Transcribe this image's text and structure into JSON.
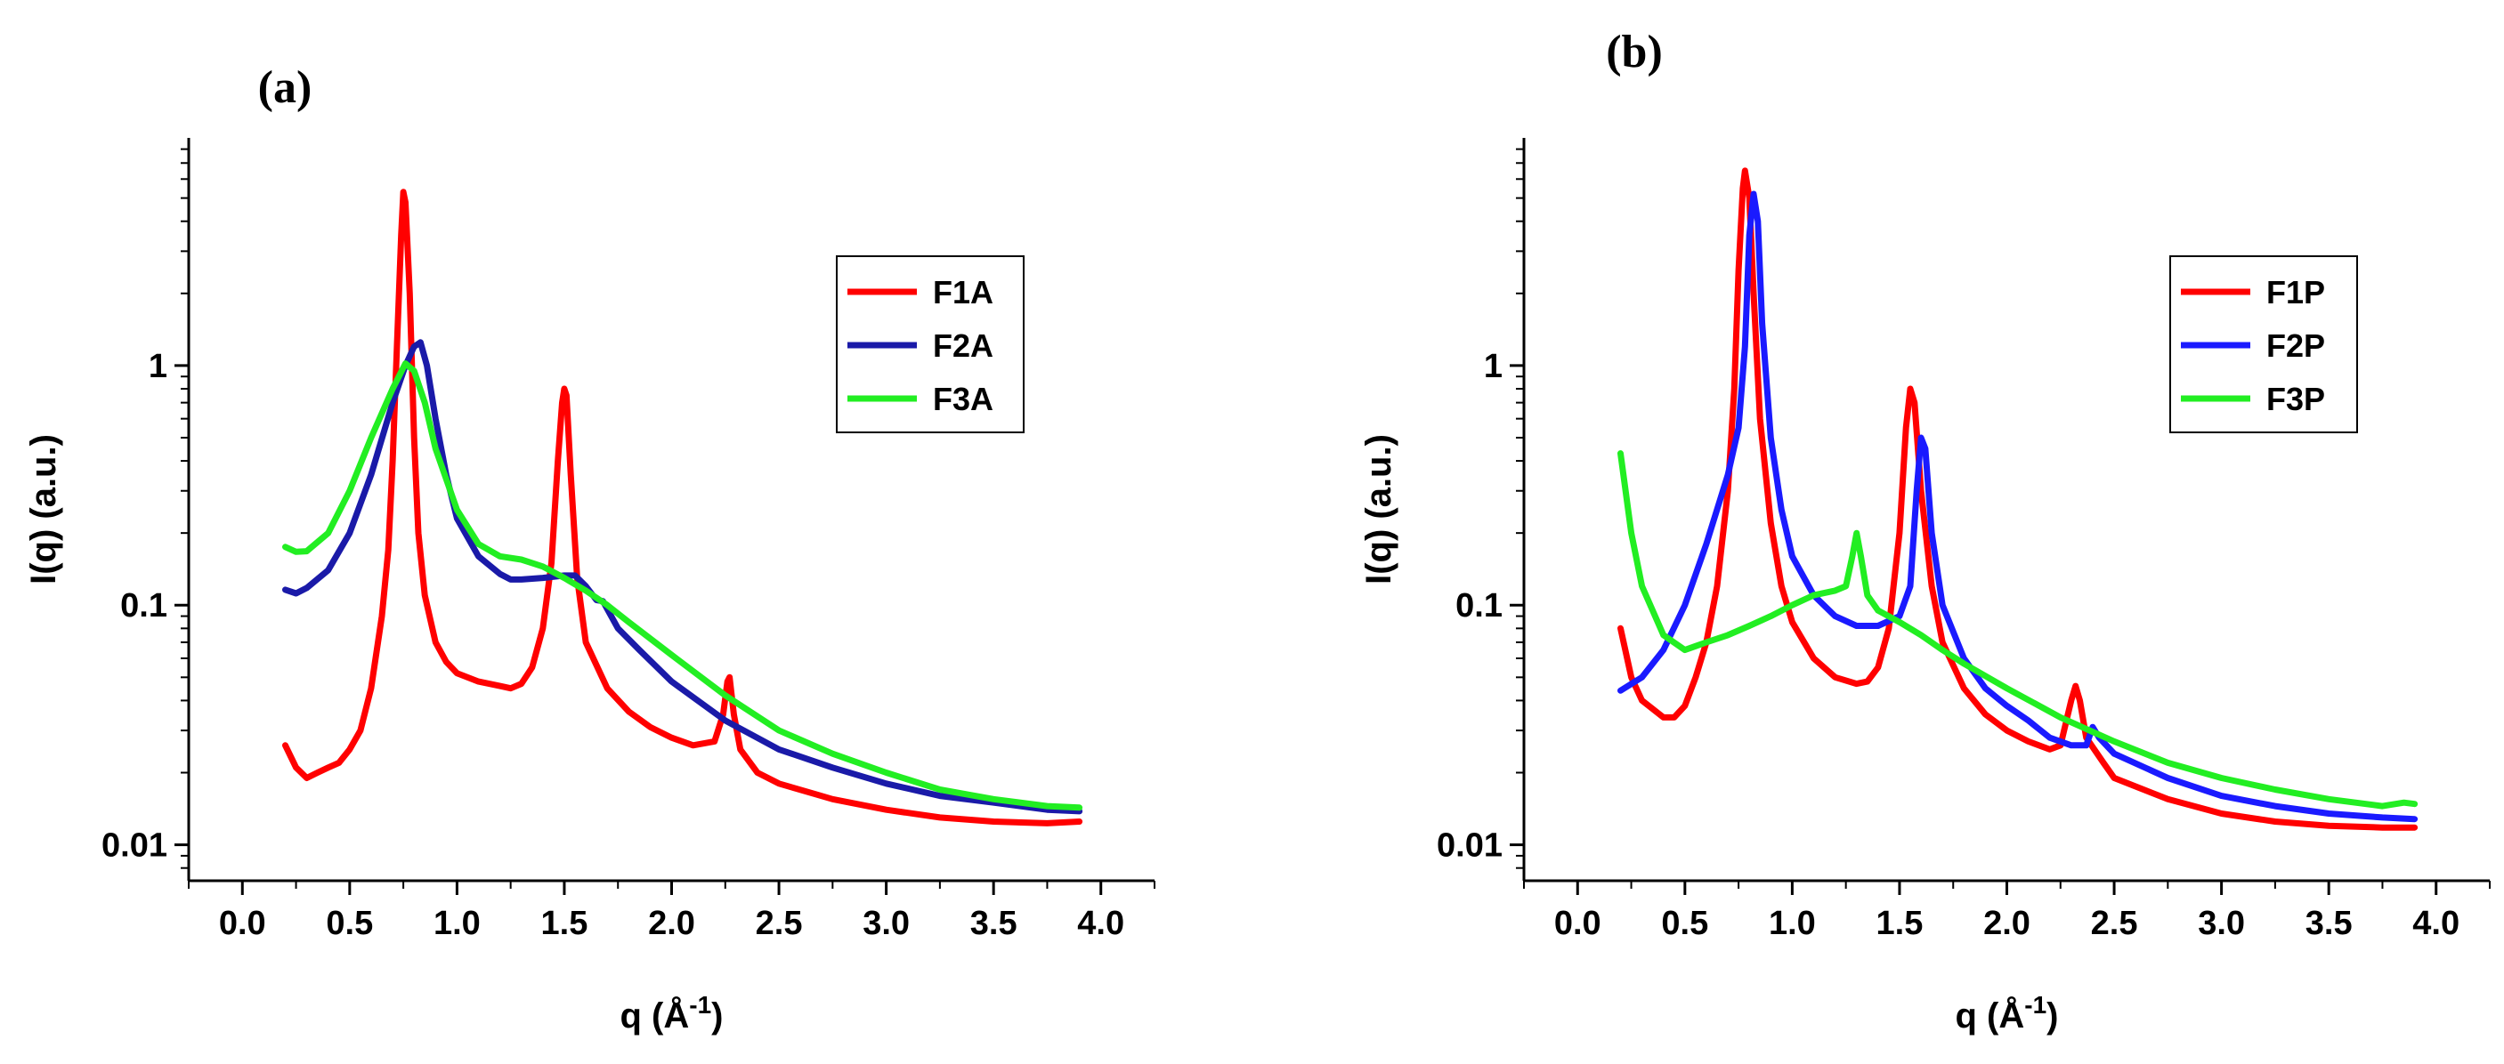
{
  "chart_data": [
    {
      "panel_label": "(a)",
      "type": "line",
      "xlabel_main": "q (Å",
      "xlabel_sup": "-1",
      "xlabel_end": ")",
      "ylabel": "I(q) (a.u.)",
      "xlim": [
        -0.25,
        4.25
      ],
      "ylim_log10": [
        -2.15,
        0.95
      ],
      "y_scale": "log",
      "x_ticks": [
        "0.0",
        "0.5",
        "1.0",
        "1.5",
        "2.0",
        "2.5",
        "3.0",
        "3.5",
        "4.0"
      ],
      "y_ticks": [
        "0.01",
        "0.1",
        "1"
      ],
      "legend_position": "top-right",
      "series": [
        {
          "name": "F1A",
          "color": "#ff0000",
          "points": [
            [
              0.2,
              0.026
            ],
            [
              0.25,
              0.021
            ],
            [
              0.3,
              0.019
            ],
            [
              0.35,
              0.02
            ],
            [
              0.4,
              0.021
            ],
            [
              0.45,
              0.022
            ],
            [
              0.5,
              0.025
            ],
            [
              0.55,
              0.03
            ],
            [
              0.6,
              0.045
            ],
            [
              0.65,
              0.09
            ],
            [
              0.68,
              0.17
            ],
            [
              0.7,
              0.4
            ],
            [
              0.72,
              1.2
            ],
            [
              0.74,
              3.5
            ],
            [
              0.75,
              5.3
            ],
            [
              0.76,
              4.8
            ],
            [
              0.78,
              2.0
            ],
            [
              0.8,
              0.5
            ],
            [
              0.82,
              0.2
            ],
            [
              0.85,
              0.11
            ],
            [
              0.9,
              0.07
            ],
            [
              0.95,
              0.058
            ],
            [
              1.0,
              0.052
            ],
            [
              1.1,
              0.048
            ],
            [
              1.2,
              0.046
            ],
            [
              1.25,
              0.045
            ],
            [
              1.3,
              0.047
            ],
            [
              1.35,
              0.055
            ],
            [
              1.4,
              0.08
            ],
            [
              1.44,
              0.15
            ],
            [
              1.47,
              0.4
            ],
            [
              1.49,
              0.7
            ],
            [
              1.5,
              0.8
            ],
            [
              1.51,
              0.75
            ],
            [
              1.53,
              0.35
            ],
            [
              1.56,
              0.13
            ],
            [
              1.6,
              0.07
            ],
            [
              1.7,
              0.045
            ],
            [
              1.8,
              0.036
            ],
            [
              1.9,
              0.031
            ],
            [
              2.0,
              0.028
            ],
            [
              2.1,
              0.026
            ],
            [
              2.2,
              0.027
            ],
            [
              2.24,
              0.035
            ],
            [
              2.26,
              0.048
            ],
            [
              2.27,
              0.05
            ],
            [
              2.29,
              0.035
            ],
            [
              2.32,
              0.025
            ],
            [
              2.4,
              0.02
            ],
            [
              2.5,
              0.018
            ],
            [
              2.75,
              0.0155
            ],
            [
              3.0,
              0.014
            ],
            [
              3.25,
              0.013
            ],
            [
              3.5,
              0.0125
            ],
            [
              3.75,
              0.0123
            ],
            [
              3.9,
              0.0125
            ]
          ]
        },
        {
          "name": "F2A",
          "color": "#1a1aa8",
          "points": [
            [
              0.2,
              0.116
            ],
            [
              0.25,
              0.112
            ],
            [
              0.3,
              0.118
            ],
            [
              0.4,
              0.14
            ],
            [
              0.5,
              0.2
            ],
            [
              0.6,
              0.35
            ],
            [
              0.7,
              0.7
            ],
            [
              0.76,
              1.0
            ],
            [
              0.8,
              1.2
            ],
            [
              0.83,
              1.25
            ],
            [
              0.86,
              1.0
            ],
            [
              0.9,
              0.6
            ],
            [
              0.95,
              0.35
            ],
            [
              1.0,
              0.23
            ],
            [
              1.1,
              0.16
            ],
            [
              1.2,
              0.135
            ],
            [
              1.25,
              0.128
            ],
            [
              1.3,
              0.128
            ],
            [
              1.4,
              0.13
            ],
            [
              1.5,
              0.133
            ],
            [
              1.55,
              0.133
            ],
            [
              1.6,
              0.12
            ],
            [
              1.65,
              0.105
            ],
            [
              1.68,
              0.104
            ],
            [
              1.75,
              0.08
            ],
            [
              1.85,
              0.065
            ],
            [
              2.0,
              0.048
            ],
            [
              2.25,
              0.033
            ],
            [
              2.5,
              0.025
            ],
            [
              2.75,
              0.021
            ],
            [
              3.0,
              0.018
            ],
            [
              3.25,
              0.016
            ],
            [
              3.5,
              0.015
            ],
            [
              3.75,
              0.014
            ],
            [
              3.9,
              0.0138
            ]
          ]
        },
        {
          "name": "F3A",
          "color": "#22ee22",
          "points": [
            [
              0.2,
              0.175
            ],
            [
              0.25,
              0.167
            ],
            [
              0.3,
              0.168
            ],
            [
              0.4,
              0.2
            ],
            [
              0.5,
              0.3
            ],
            [
              0.6,
              0.5
            ],
            [
              0.7,
              0.8
            ],
            [
              0.76,
              1.02
            ],
            [
              0.8,
              0.95
            ],
            [
              0.85,
              0.7
            ],
            [
              0.9,
              0.45
            ],
            [
              1.0,
              0.25
            ],
            [
              1.1,
              0.18
            ],
            [
              1.2,
              0.16
            ],
            [
              1.3,
              0.155
            ],
            [
              1.4,
              0.145
            ],
            [
              1.5,
              0.13
            ],
            [
              1.6,
              0.115
            ],
            [
              1.7,
              0.1
            ],
            [
              1.8,
              0.085
            ],
            [
              2.0,
              0.062
            ],
            [
              2.25,
              0.042
            ],
            [
              2.5,
              0.03
            ],
            [
              2.75,
              0.024
            ],
            [
              3.0,
              0.02
            ],
            [
              3.25,
              0.017
            ],
            [
              3.5,
              0.0155
            ],
            [
              3.75,
              0.0145
            ],
            [
              3.9,
              0.0143
            ]
          ]
        }
      ]
    },
    {
      "panel_label": "(b)",
      "type": "line",
      "xlabel_main": "q (Å",
      "xlabel_sup": "-1",
      "xlabel_end": ")",
      "ylabel": "I(q) (a.u.)",
      "xlim": [
        -0.25,
        4.25
      ],
      "ylim_log10": [
        -2.15,
        0.95
      ],
      "y_scale": "log",
      "x_ticks": [
        "0.0",
        "0.5",
        "1.0",
        "1.5",
        "2.0",
        "2.5",
        "3.0",
        "3.5",
        "4.0"
      ],
      "y_ticks": [
        "0.01",
        "0.1",
        "1"
      ],
      "legend_position": "top-right",
      "series": [
        {
          "name": "F1P",
          "color": "#ff0000",
          "points": [
            [
              0.2,
              0.08
            ],
            [
              0.25,
              0.05
            ],
            [
              0.3,
              0.04
            ],
            [
              0.4,
              0.034
            ],
            [
              0.45,
              0.034
            ],
            [
              0.5,
              0.038
            ],
            [
              0.55,
              0.05
            ],
            [
              0.6,
              0.07
            ],
            [
              0.65,
              0.12
            ],
            [
              0.7,
              0.3
            ],
            [
              0.73,
              0.8
            ],
            [
              0.75,
              2.5
            ],
            [
              0.77,
              5.5
            ],
            [
              0.78,
              6.5
            ],
            [
              0.8,
              5.0
            ],
            [
              0.82,
              2.0
            ],
            [
              0.85,
              0.6
            ],
            [
              0.9,
              0.22
            ],
            [
              0.95,
              0.12
            ],
            [
              1.0,
              0.085
            ],
            [
              1.1,
              0.06
            ],
            [
              1.2,
              0.05
            ],
            [
              1.3,
              0.047
            ],
            [
              1.35,
              0.048
            ],
            [
              1.4,
              0.055
            ],
            [
              1.45,
              0.08
            ],
            [
              1.5,
              0.2
            ],
            [
              1.53,
              0.55
            ],
            [
              1.55,
              0.8
            ],
            [
              1.57,
              0.7
            ],
            [
              1.6,
              0.3
            ],
            [
              1.65,
              0.12
            ],
            [
              1.7,
              0.07
            ],
            [
              1.8,
              0.045
            ],
            [
              1.9,
              0.035
            ],
            [
              2.0,
              0.03
            ],
            [
              2.1,
              0.027
            ],
            [
              2.2,
              0.025
            ],
            [
              2.25,
              0.026
            ],
            [
              2.3,
              0.04
            ],
            [
              2.32,
              0.046
            ],
            [
              2.34,
              0.04
            ],
            [
              2.37,
              0.028
            ],
            [
              2.45,
              0.022
            ],
            [
              2.5,
              0.019
            ],
            [
              2.75,
              0.0155
            ],
            [
              3.0,
              0.0135
            ],
            [
              3.25,
              0.0125
            ],
            [
              3.5,
              0.012
            ],
            [
              3.75,
              0.0118
            ],
            [
              3.9,
              0.0118
            ]
          ]
        },
        {
          "name": "F2P",
          "color": "#1a1aff",
          "points": [
            [
              0.2,
              0.044
            ],
            [
              0.3,
              0.05
            ],
            [
              0.4,
              0.065
            ],
            [
              0.5,
              0.1
            ],
            [
              0.6,
              0.18
            ],
            [
              0.7,
              0.35
            ],
            [
              0.75,
              0.55
            ],
            [
              0.78,
              1.2
            ],
            [
              0.8,
              3.5
            ],
            [
              0.82,
              5.2
            ],
            [
              0.84,
              4.0
            ],
            [
              0.86,
              1.5
            ],
            [
              0.9,
              0.5
            ],
            [
              0.95,
              0.25
            ],
            [
              1.0,
              0.16
            ],
            [
              1.1,
              0.11
            ],
            [
              1.2,
              0.09
            ],
            [
              1.3,
              0.082
            ],
            [
              1.4,
              0.082
            ],
            [
              1.5,
              0.09
            ],
            [
              1.55,
              0.12
            ],
            [
              1.58,
              0.3
            ],
            [
              1.6,
              0.5
            ],
            [
              1.62,
              0.45
            ],
            [
              1.65,
              0.2
            ],
            [
              1.7,
              0.1
            ],
            [
              1.8,
              0.06
            ],
            [
              1.9,
              0.045
            ],
            [
              2.0,
              0.038
            ],
            [
              2.1,
              0.033
            ],
            [
              2.2,
              0.028
            ],
            [
              2.3,
              0.026
            ],
            [
              2.37,
              0.026
            ],
            [
              2.4,
              0.031
            ],
            [
              2.43,
              0.028
            ],
            [
              2.5,
              0.024
            ],
            [
              2.75,
              0.019
            ],
            [
              3.0,
              0.016
            ],
            [
              3.25,
              0.0145
            ],
            [
              3.5,
              0.0135
            ],
            [
              3.75,
              0.013
            ],
            [
              3.9,
              0.0128
            ]
          ]
        },
        {
          "name": "F3P",
          "color": "#22ee22",
          "points": [
            [
              0.2,
              0.43
            ],
            [
              0.25,
              0.2
            ],
            [
              0.3,
              0.12
            ],
            [
              0.4,
              0.075
            ],
            [
              0.5,
              0.065
            ],
            [
              0.6,
              0.07
            ],
            [
              0.7,
              0.075
            ],
            [
              0.8,
              0.082
            ],
            [
              0.9,
              0.09
            ],
            [
              1.0,
              0.1
            ],
            [
              1.1,
              0.11
            ],
            [
              1.2,
              0.115
            ],
            [
              1.25,
              0.12
            ],
            [
              1.28,
              0.16
            ],
            [
              1.3,
              0.2
            ],
            [
              1.32,
              0.16
            ],
            [
              1.35,
              0.11
            ],
            [
              1.4,
              0.095
            ],
            [
              1.5,
              0.085
            ],
            [
              1.6,
              0.075
            ],
            [
              1.7,
              0.065
            ],
            [
              1.8,
              0.057
            ],
            [
              2.0,
              0.045
            ],
            [
              2.25,
              0.034
            ],
            [
              2.5,
              0.027
            ],
            [
              2.75,
              0.022
            ],
            [
              3.0,
              0.019
            ],
            [
              3.25,
              0.017
            ],
            [
              3.5,
              0.0155
            ],
            [
              3.75,
              0.0145
            ],
            [
              3.85,
              0.015
            ],
            [
              3.9,
              0.0148
            ]
          ]
        }
      ]
    }
  ]
}
